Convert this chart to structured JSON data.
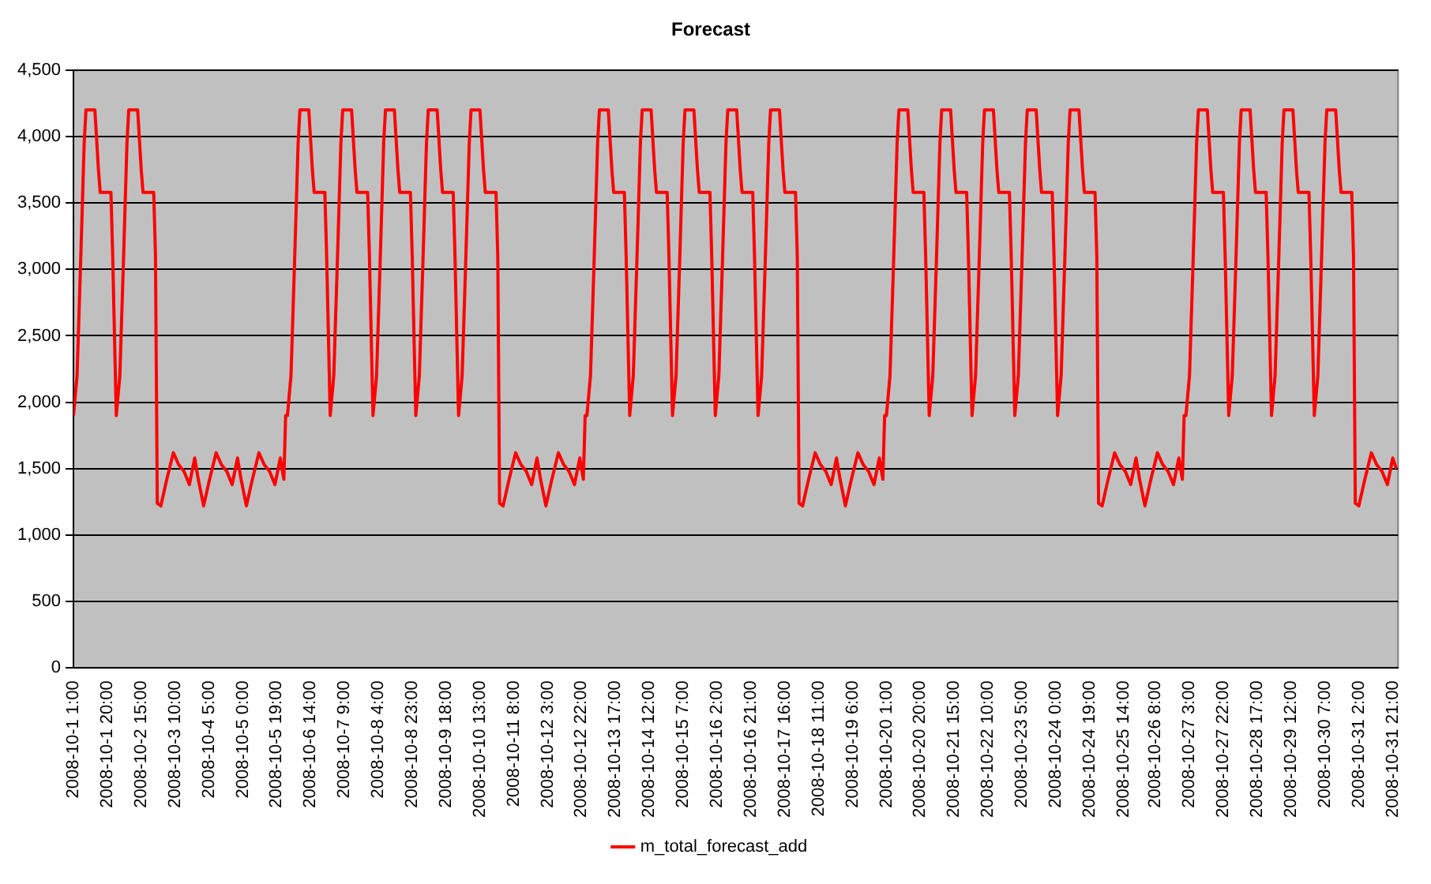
{
  "chart_data": {
    "type": "line",
    "title": "Forecast",
    "legend": "bottom",
    "grid": "y",
    "marker": "none",
    "line_style": "solid",
    "xlim": [
      "2008-10-01T01:00",
      "2008-11-01T00:00"
    ],
    "ylim": [
      0,
      4500
    ],
    "yticks": [
      0,
      500,
      {
        "value": 1000,
        "label": "1,000"
      },
      {
        "value": 1500,
        "label": "1,500"
      },
      {
        "value": 2000,
        "label": "2,000"
      },
      {
        "value": 2500,
        "label": "2,500"
      },
      {
        "value": 3000,
        "label": "3,000"
      },
      {
        "value": 3500,
        "label": "3,500"
      },
      {
        "value": 4000,
        "label": "4,000"
      },
      {
        "value": 4500,
        "label": "4,500"
      }
    ],
    "xticks": [
      {
        "value": "2008-10-01T01:00",
        "label": "2008-10-1 1:00"
      },
      {
        "value": "2008-10-01T20:00",
        "label": "2008-10-1 20:00"
      },
      {
        "value": "2008-10-02T15:00",
        "label": "2008-10-2 15:00"
      },
      {
        "value": "2008-10-03T10:00",
        "label": "2008-10-3 10:00"
      },
      {
        "value": "2008-10-04T05:00",
        "label": "2008-10-4 5:00"
      },
      {
        "value": "2008-10-05T00:00",
        "label": "2008-10-5 0:00"
      },
      {
        "value": "2008-10-05T19:00",
        "label": "2008-10-5 19:00"
      },
      {
        "value": "2008-10-06T14:00",
        "label": "2008-10-6 14:00"
      },
      {
        "value": "2008-10-07T09:00",
        "label": "2008-10-7 9:00"
      },
      {
        "value": "2008-10-08T04:00",
        "label": "2008-10-8 4:00"
      },
      {
        "value": "2008-10-08T23:00",
        "label": "2008-10-8 23:00"
      },
      {
        "value": "2008-10-09T18:00",
        "label": "2008-10-9 18:00"
      },
      {
        "value": "2008-10-10T13:00",
        "label": "2008-10-10 13:00"
      },
      {
        "value": "2008-10-11T08:00",
        "label": "2008-10-11 8:00"
      },
      {
        "value": "2008-10-12T03:00",
        "label": "2008-10-12 3:00"
      },
      {
        "value": "2008-10-12T22:00",
        "label": "2008-10-12 22:00"
      },
      {
        "value": "2008-10-13T17:00",
        "label": "2008-10-13 17:00"
      },
      {
        "value": "2008-10-14T12:00",
        "label": "2008-10-14 12:00"
      },
      {
        "value": "2008-10-15T07:00",
        "label": "2008-10-15 7:00"
      },
      {
        "value": "2008-10-16T02:00",
        "label": "2008-10-16 2:00"
      },
      {
        "value": "2008-10-16T21:00",
        "label": "2008-10-16 21:00"
      },
      {
        "value": "2008-10-17T16:00",
        "label": "2008-10-17 16:00"
      },
      {
        "value": "2008-10-18T11:00",
        "label": "2008-10-18 11:00"
      },
      {
        "value": "2008-10-19T06:00",
        "label": "2008-10-19 6:00"
      },
      {
        "value": "2008-10-20T01:00",
        "label": "2008-10-20 1:00"
      },
      {
        "value": "2008-10-20T20:00",
        "label": "2008-10-20 20:00"
      },
      {
        "value": "2008-10-21T15:00",
        "label": "2008-10-21 15:00"
      },
      {
        "value": "2008-10-22T10:00",
        "label": "2008-10-22 10:00"
      },
      {
        "value": "2008-10-23T05:00",
        "label": "2008-10-23 5:00"
      },
      {
        "value": "2008-10-24T00:00",
        "label": "2008-10-24 0:00"
      },
      {
        "value": "2008-10-24T19:00",
        "label": "2008-10-24 19:00"
      },
      {
        "value": "2008-10-25T14:00",
        "label": "2008-10-25 14:00"
      },
      {
        "value": "2008-10-26T08:00",
        "label": "2008-10-26 8:00"
      },
      {
        "value": "2008-10-27T03:00",
        "label": "2008-10-27 3:00"
      },
      {
        "value": "2008-10-27T22:00",
        "label": "2008-10-27 22:00"
      },
      {
        "value": "2008-10-28T17:00",
        "label": "2008-10-28 17:00"
      },
      {
        "value": "2008-10-29T12:00",
        "label": "2008-10-29 12:00"
      },
      {
        "value": "2008-10-30T07:00",
        "label": "2008-10-30 7:00"
      },
      {
        "value": "2008-10-31T02:00",
        "label": "2008-10-31 2:00"
      },
      {
        "value": "2008-10-31T21:00",
        "label": "2008-10-31 21:00"
      }
    ],
    "series": [
      {
        "name": "m_total_forecast_add",
        "color": "#ff0000",
        "x": [
          "2008-10-01T01:00",
          "2008-10-01T03:00",
          "2008-10-01T05:00",
          "2008-10-01T07:00",
          "2008-10-01T08:00",
          "2008-10-01T13:00",
          "2008-10-01T15:00",
          "2008-10-01T16:00",
          "2008-10-01T22:00",
          "2008-10-01T23:00",
          "2008-10-02T01:00",
          "2008-10-02T03:00",
          "2008-10-02T05:00",
          "2008-10-02T07:00",
          "2008-10-02T08:00",
          "2008-10-02T13:00",
          "2008-10-02T15:00",
          "2008-10-02T16:00",
          "2008-10-02T22:00",
          "2008-10-02T23:00",
          "2008-10-03T00:00",
          "2008-10-03T02:00",
          "2008-10-03T05:00",
          "2008-10-03T09:00",
          "2008-10-03T12:00",
          "2008-10-03T15:00",
          "2008-10-03T18:00",
          "2008-10-03T21:00",
          "2008-10-03T23:00",
          "2008-10-04T02:00",
          "2008-10-04T05:00",
          "2008-10-04T09:00",
          "2008-10-04T12:00",
          "2008-10-04T15:00",
          "2008-10-04T18:00",
          "2008-10-04T21:00",
          "2008-10-04T23:00",
          "2008-10-05T02:00",
          "2008-10-05T05:00",
          "2008-10-05T09:00",
          "2008-10-05T12:00",
          "2008-10-05T15:00",
          "2008-10-05T18:00",
          "2008-10-05T21:00",
          "2008-10-05T23:00",
          "2008-10-06T00:00",
          "2008-10-06T01:00",
          "2008-10-06T03:00",
          "2008-10-06T05:00",
          "2008-10-06T07:00",
          "2008-10-06T08:00",
          "2008-10-06T13:00",
          "2008-10-06T15:00",
          "2008-10-06T16:00",
          "2008-10-06T22:00",
          "2008-10-06T23:00",
          "2008-10-07T01:00",
          "2008-10-07T03:00",
          "2008-10-07T05:00",
          "2008-10-07T07:00",
          "2008-10-07T08:00",
          "2008-10-07T13:00",
          "2008-10-07T15:00",
          "2008-10-07T16:00",
          "2008-10-07T22:00",
          "2008-10-07T23:00",
          "2008-10-08T01:00",
          "2008-10-08T03:00",
          "2008-10-08T05:00",
          "2008-10-08T07:00",
          "2008-10-08T08:00",
          "2008-10-08T13:00",
          "2008-10-08T15:00",
          "2008-10-08T16:00",
          "2008-10-08T22:00",
          "2008-10-08T23:00",
          "2008-10-09T01:00",
          "2008-10-09T03:00",
          "2008-10-09T05:00",
          "2008-10-09T07:00",
          "2008-10-09T08:00",
          "2008-10-09T13:00",
          "2008-10-09T15:00",
          "2008-10-09T16:00",
          "2008-10-09T22:00",
          "2008-10-09T23:00",
          "2008-10-10T01:00",
          "2008-10-10T03:00",
          "2008-10-10T05:00",
          "2008-10-10T07:00",
          "2008-10-10T08:00",
          "2008-10-10T13:00",
          "2008-10-10T15:00",
          "2008-10-10T16:00",
          "2008-10-10T22:00",
          "2008-10-10T23:00",
          "2008-10-11T00:00",
          "2008-10-11T02:00",
          "2008-10-11T05:00",
          "2008-10-11T09:00",
          "2008-10-11T12:00",
          "2008-10-11T15:00",
          "2008-10-11T18:00",
          "2008-10-11T21:00",
          "2008-10-11T23:00",
          "2008-10-12T02:00",
          "2008-10-12T05:00",
          "2008-10-12T09:00",
          "2008-10-12T12:00",
          "2008-10-12T15:00",
          "2008-10-12T18:00",
          "2008-10-12T21:00",
          "2008-10-12T23:00",
          "2008-10-13T00:00",
          "2008-10-13T01:00",
          "2008-10-13T03:00",
          "2008-10-13T05:00",
          "2008-10-13T07:00",
          "2008-10-13T08:00",
          "2008-10-13T13:00",
          "2008-10-13T15:00",
          "2008-10-13T16:00",
          "2008-10-13T22:00",
          "2008-10-13T23:00",
          "2008-10-14T01:00",
          "2008-10-14T03:00",
          "2008-10-14T05:00",
          "2008-10-14T07:00",
          "2008-10-14T08:00",
          "2008-10-14T13:00",
          "2008-10-14T15:00",
          "2008-10-14T16:00",
          "2008-10-14T22:00",
          "2008-10-14T23:00",
          "2008-10-15T01:00",
          "2008-10-15T03:00",
          "2008-10-15T05:00",
          "2008-10-15T07:00",
          "2008-10-15T08:00",
          "2008-10-15T13:00",
          "2008-10-15T15:00",
          "2008-10-15T16:00",
          "2008-10-15T22:00",
          "2008-10-15T23:00",
          "2008-10-16T01:00",
          "2008-10-16T03:00",
          "2008-10-16T05:00",
          "2008-10-16T07:00",
          "2008-10-16T08:00",
          "2008-10-16T13:00",
          "2008-10-16T15:00",
          "2008-10-16T16:00",
          "2008-10-16T22:00",
          "2008-10-16T23:00",
          "2008-10-17T01:00",
          "2008-10-17T03:00",
          "2008-10-17T05:00",
          "2008-10-17T07:00",
          "2008-10-17T08:00",
          "2008-10-17T13:00",
          "2008-10-17T15:00",
          "2008-10-17T16:00",
          "2008-10-17T22:00",
          "2008-10-17T23:00",
          "2008-10-18T00:00",
          "2008-10-18T02:00",
          "2008-10-18T05:00",
          "2008-10-18T09:00",
          "2008-10-18T12:00",
          "2008-10-18T15:00",
          "2008-10-18T18:00",
          "2008-10-18T21:00",
          "2008-10-18T23:00",
          "2008-10-19T02:00",
          "2008-10-19T05:00",
          "2008-10-19T09:00",
          "2008-10-19T12:00",
          "2008-10-19T15:00",
          "2008-10-19T18:00",
          "2008-10-19T21:00",
          "2008-10-19T23:00",
          "2008-10-20T00:00",
          "2008-10-20T01:00",
          "2008-10-20T03:00",
          "2008-10-20T05:00",
          "2008-10-20T07:00",
          "2008-10-20T08:00",
          "2008-10-20T13:00",
          "2008-10-20T15:00",
          "2008-10-20T16:00",
          "2008-10-20T22:00",
          "2008-10-20T23:00",
          "2008-10-21T01:00",
          "2008-10-21T03:00",
          "2008-10-21T05:00",
          "2008-10-21T07:00",
          "2008-10-21T08:00",
          "2008-10-21T13:00",
          "2008-10-21T15:00",
          "2008-10-21T16:00",
          "2008-10-21T22:00",
          "2008-10-21T23:00",
          "2008-10-22T01:00",
          "2008-10-22T03:00",
          "2008-10-22T05:00",
          "2008-10-22T07:00",
          "2008-10-22T08:00",
          "2008-10-22T13:00",
          "2008-10-22T15:00",
          "2008-10-22T16:00",
          "2008-10-22T22:00",
          "2008-10-22T23:00",
          "2008-10-23T01:00",
          "2008-10-23T03:00",
          "2008-10-23T05:00",
          "2008-10-23T07:00",
          "2008-10-23T08:00",
          "2008-10-23T13:00",
          "2008-10-23T15:00",
          "2008-10-23T16:00",
          "2008-10-23T22:00",
          "2008-10-23T23:00",
          "2008-10-24T01:00",
          "2008-10-24T03:00",
          "2008-10-24T05:00",
          "2008-10-24T07:00",
          "2008-10-24T08:00",
          "2008-10-24T13:00",
          "2008-10-24T15:00",
          "2008-10-24T16:00",
          "2008-10-24T22:00",
          "2008-10-24T23:00",
          "2008-10-25T00:00",
          "2008-10-25T02:00",
          "2008-10-25T05:00",
          "2008-10-25T09:00",
          "2008-10-25T12:00",
          "2008-10-25T15:00",
          "2008-10-25T18:00",
          "2008-10-25T21:00",
          "2008-10-25T23:00",
          "2008-10-26T02:00",
          "2008-10-26T05:00",
          "2008-10-26T09:00",
          "2008-10-26T12:00",
          "2008-10-26T15:00",
          "2008-10-26T18:00",
          "2008-10-26T21:00",
          "2008-10-26T23:00",
          "2008-10-27T00:00",
          "2008-10-27T01:00",
          "2008-10-27T03:00",
          "2008-10-27T05:00",
          "2008-10-27T07:00",
          "2008-10-27T08:00",
          "2008-10-27T13:00",
          "2008-10-27T15:00",
          "2008-10-27T16:00",
          "2008-10-27T22:00",
          "2008-10-27T23:00",
          "2008-10-28T01:00",
          "2008-10-28T03:00",
          "2008-10-28T05:00",
          "2008-10-28T07:00",
          "2008-10-28T08:00",
          "2008-10-28T13:00",
          "2008-10-28T15:00",
          "2008-10-28T16:00",
          "2008-10-28T22:00",
          "2008-10-28T23:00",
          "2008-10-29T01:00",
          "2008-10-29T03:00",
          "2008-10-29T05:00",
          "2008-10-29T07:00",
          "2008-10-29T08:00",
          "2008-10-29T13:00",
          "2008-10-29T15:00",
          "2008-10-29T16:00",
          "2008-10-29T22:00",
          "2008-10-29T23:00",
          "2008-10-30T01:00",
          "2008-10-30T03:00",
          "2008-10-30T05:00",
          "2008-10-30T07:00",
          "2008-10-30T08:00",
          "2008-10-30T13:00",
          "2008-10-30T15:00",
          "2008-10-30T16:00",
          "2008-10-30T22:00",
          "2008-10-30T23:00",
          "2008-10-31T00:00",
          "2008-10-31T02:00",
          "2008-10-31T05:00",
          "2008-10-31T09:00",
          "2008-10-31T12:00",
          "2008-10-31T15:00",
          "2008-10-31T18:00",
          "2008-10-31T21:00",
          "2008-10-31T23:00"
        ],
        "values": [
          1900,
          2200,
          3050,
          3950,
          4200,
          4200,
          3750,
          3580,
          3580,
          3100,
          1900,
          2200,
          3050,
          3950,
          4200,
          4200,
          3750,
          3580,
          3580,
          3100,
          1240,
          1220,
          1400,
          1620,
          1530,
          1480,
          1380,
          1580,
          1420,
          1220,
          1400,
          1620,
          1530,
          1480,
          1380,
          1580,
          1420,
          1220,
          1400,
          1620,
          1530,
          1480,
          1380,
          1580,
          1420,
          1900,
          1900,
          2200,
          3050,
          3950,
          4200,
          4200,
          3750,
          3580,
          3580,
          3100,
          1900,
          2200,
          3050,
          3950,
          4200,
          4200,
          3750,
          3580,
          3580,
          3100,
          1900,
          2200,
          3050,
          3950,
          4200,
          4200,
          3750,
          3580,
          3580,
          3100,
          1900,
          2200,
          3050,
          3950,
          4200,
          4200,
          3750,
          3580,
          3580,
          3100,
          1900,
          2200,
          3050,
          3950,
          4200,
          4200,
          3750,
          3580,
          3580,
          3100,
          1240,
          1220,
          1400,
          1620,
          1530,
          1480,
          1380,
          1580,
          1420,
          1220,
          1400,
          1620,
          1530,
          1480,
          1380,
          1580,
          1420,
          1900,
          1900,
          2200,
          3050,
          3950,
          4200,
          4200,
          3750,
          3580,
          3580,
          3100,
          1900,
          2200,
          3050,
          3950,
          4200,
          4200,
          3750,
          3580,
          3580,
          3100,
          1900,
          2200,
          3050,
          3950,
          4200,
          4200,
          3750,
          3580,
          3580,
          3100,
          1900,
          2200,
          3050,
          3950,
          4200,
          4200,
          3750,
          3580,
          3580,
          3100,
          1900,
          2200,
          3050,
          3950,
          4200,
          4200,
          3750,
          3580,
          3580,
          3100,
          1240,
          1220,
          1400,
          1620,
          1530,
          1480,
          1380,
          1580,
          1420,
          1220,
          1400,
          1620,
          1530,
          1480,
          1380,
          1580,
          1420,
          1900,
          1900,
          2200,
          3050,
          3950,
          4200,
          4200,
          3750,
          3580,
          3580,
          3100,
          1900,
          2200,
          3050,
          3950,
          4200,
          4200,
          3750,
          3580,
          3580,
          3100,
          1900,
          2200,
          3050,
          3950,
          4200,
          4200,
          3750,
          3580,
          3580,
          3100,
          1900,
          2200,
          3050,
          3950,
          4200,
          4200,
          3750,
          3580,
          3580,
          3100,
          1900,
          2200,
          3050,
          3950,
          4200,
          4200,
          3750,
          3580,
          3580,
          3100,
          1240,
          1220,
          1400,
          1620,
          1530,
          1480,
          1380,
          1580,
          1420,
          1220,
          1400,
          1620,
          1530,
          1480,
          1380,
          1580,
          1420,
          1900,
          1900,
          2200,
          3050,
          3950,
          4200,
          4200,
          3750,
          3580,
          3580,
          3100,
          1900,
          2200,
          3050,
          3950,
          4200,
          4200,
          3750,
          3580,
          3580,
          3100,
          1900,
          2200,
          3050,
          3950,
          4200,
          4200,
          3750,
          3580,
          3580,
          3100,
          1900,
          2200,
          3050,
          3950,
          4200,
          4200,
          3750,
          3580,
          3580,
          3100,
          1240,
          1220,
          1400,
          1620,
          1530,
          1480,
          1380,
          1580,
          1500
        ]
      }
    ]
  }
}
